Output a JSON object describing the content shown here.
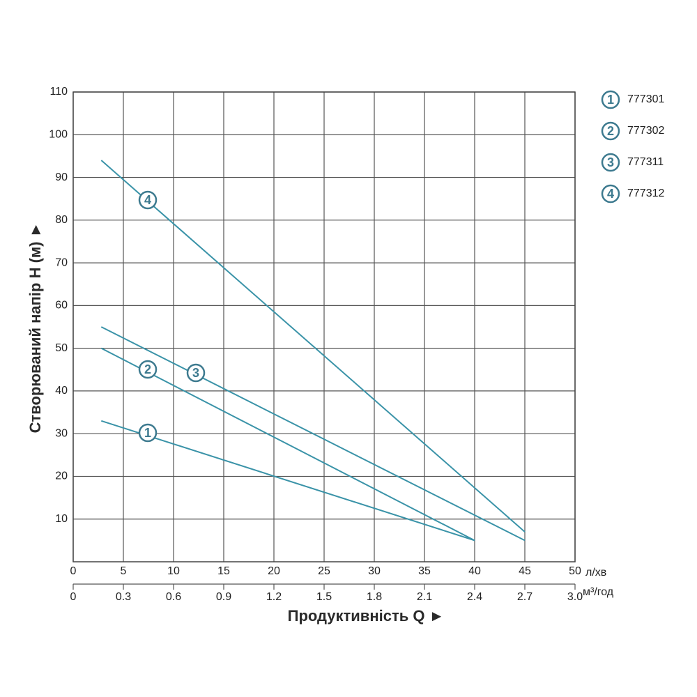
{
  "chart_data": {
    "type": "line",
    "y_label": "Створюваний напір H (м) ►",
    "x_label": "Продуктивність  Q ►",
    "x_unit": "л/хв",
    "x2_unit": "м³/год",
    "xlim": [
      0,
      50
    ],
    "xticks": [
      0,
      5,
      10,
      15,
      20,
      25,
      30,
      35,
      40,
      45,
      50
    ],
    "x2lim": [
      0,
      3
    ],
    "x2ticks": [
      0,
      0.3,
      0.6,
      0.9,
      1.2,
      1.5,
      1.8,
      2.1,
      2.4,
      2.7,
      {
        "value": 3,
        "label": "3.0"
      }
    ],
    "ylim": [
      0,
      110
    ],
    "yticks": [
      10,
      20,
      30,
      40,
      50,
      60,
      70,
      80,
      90,
      100,
      110
    ],
    "grid": true,
    "series": [
      {
        "label": "1",
        "name": "777301",
        "color": "#3a93a8",
        "x": [
          2.8,
          40
        ],
        "values": [
          33,
          5
        ]
      },
      {
        "label": "2",
        "name": "777302",
        "color": "#3a93a8",
        "x": [
          2.8,
          40
        ],
        "values": [
          50,
          5
        ]
      },
      {
        "label": "3",
        "name": "777311",
        "color": "#3a93a8",
        "x": [
          2.8,
          45
        ],
        "values": [
          55,
          5
        ]
      },
      {
        "label": "4",
        "name": "777312",
        "color": "#3a93a8",
        "x": [
          2.8,
          45
        ],
        "values": [
          94,
          7
        ]
      }
    ]
  }
}
